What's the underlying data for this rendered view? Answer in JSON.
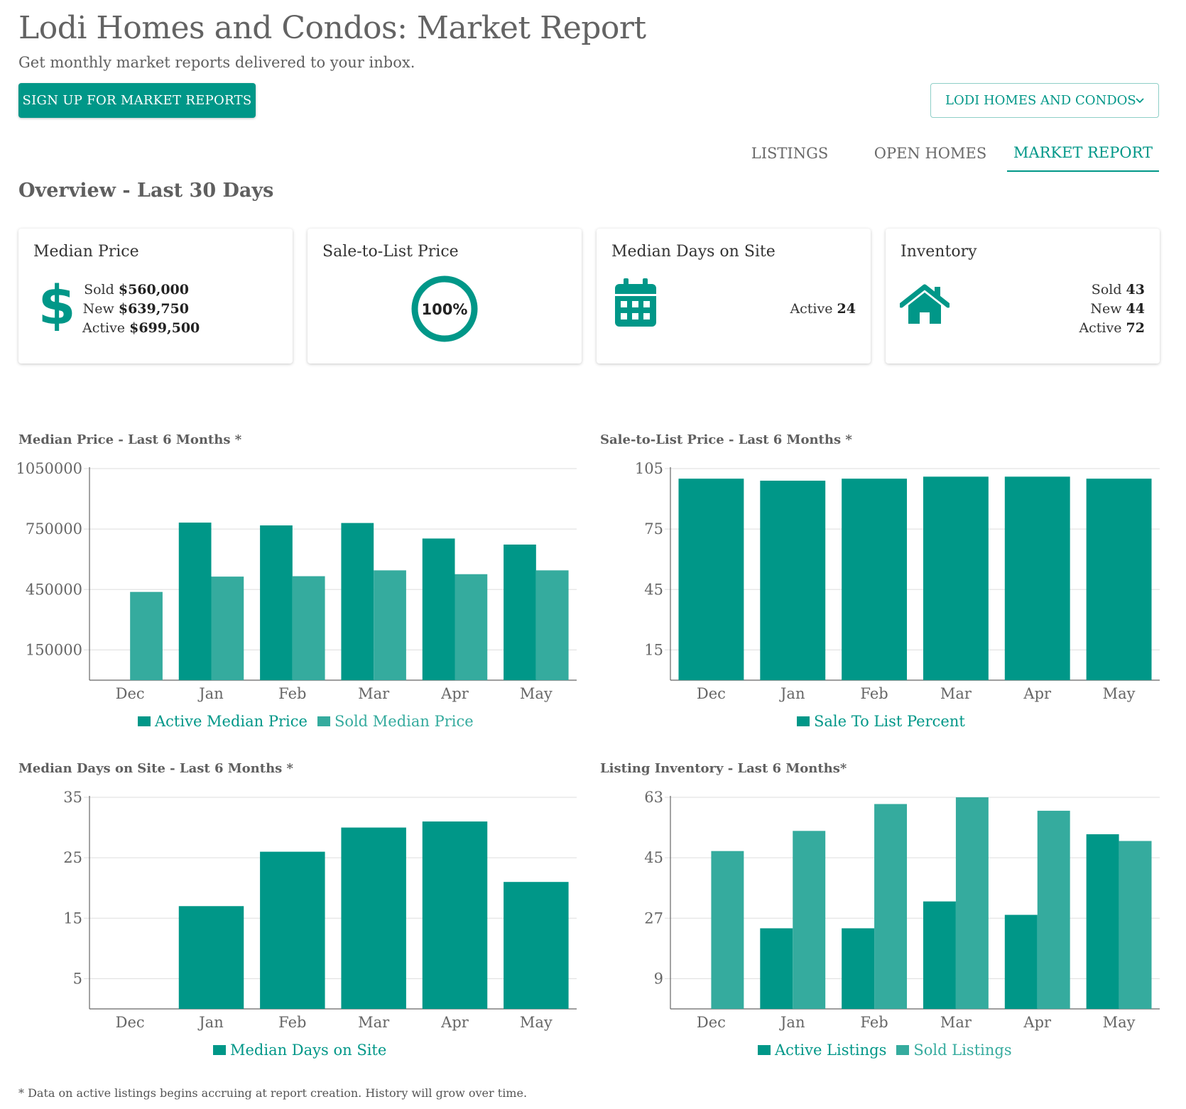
{
  "header": {
    "title": "Lodi Homes and Condos: Market Report",
    "subtitle": "Get monthly market reports delivered to your inbox.",
    "signup_label": "SIGN UP FOR MARKET REPORTS",
    "region_select": "LODI HOMES AND CONDOS"
  },
  "tabs": [
    {
      "label": "LISTINGS",
      "active": false
    },
    {
      "label": "OPEN HOMES",
      "active": false
    },
    {
      "label": "MARKET REPORT",
      "active": true
    }
  ],
  "overview": {
    "title": "Overview - Last 30 Days",
    "cards": {
      "median_price": {
        "title": "Median Price",
        "icon": "dollar-icon",
        "lines": [
          {
            "label": "Sold",
            "value": "$560,000"
          },
          {
            "label": "New",
            "value": "$639,750"
          },
          {
            "label": "Active",
            "value": "$699,500"
          }
        ]
      },
      "sale_to_list": {
        "title": "Sale-to-List Price",
        "icon": "ring-progress",
        "value": "100%"
      },
      "days_on_site": {
        "title": "Median Days on Site",
        "icon": "calendar-icon",
        "lines": [
          {
            "label": "Active",
            "value": "24"
          }
        ]
      },
      "inventory": {
        "title": "Inventory",
        "icon": "house-icon",
        "lines": [
          {
            "label": "Sold",
            "value": "43"
          },
          {
            "label": "New",
            "value": "44"
          },
          {
            "label": "Active",
            "value": "72"
          }
        ]
      }
    }
  },
  "colors": {
    "primary": "#009788",
    "secondary": "#35ab9e",
    "grid": "#dddddd",
    "axis": "#666666"
  },
  "chart_data": [
    {
      "id": "median-price",
      "type": "bar",
      "title": "Median Price - Last 6 Months *",
      "categories": [
        "Dec",
        "Jan",
        "Feb",
        "Mar",
        "Apr",
        "May"
      ],
      "series": [
        {
          "name": "Active Median Price",
          "values": [
            null,
            782000,
            768000,
            780000,
            703000,
            673000
          ]
        },
        {
          "name": "Sold Median Price",
          "values": [
            438000,
            514000,
            516000,
            545000,
            526000,
            545000
          ]
        }
      ],
      "ylim": [
        0,
        1050000
      ],
      "yticks": [
        150000,
        450000,
        750000,
        1050000
      ],
      "grid": true,
      "legend": "bottom"
    },
    {
      "id": "sale-to-list",
      "type": "bar",
      "title": "Sale-to-List Price - Last 6 Months *",
      "categories": [
        "Dec",
        "Jan",
        "Feb",
        "Mar",
        "Apr",
        "May"
      ],
      "series": [
        {
          "name": "Sale To List Percent",
          "values": [
            100,
            99,
            100,
            101,
            101,
            100
          ]
        }
      ],
      "ylim": [
        0,
        105
      ],
      "yticks": [
        15,
        45,
        75,
        105
      ],
      "grid": true,
      "legend": "bottom"
    },
    {
      "id": "days-on-site",
      "type": "bar",
      "title": "Median Days on Site - Last 6 Months *",
      "categories": [
        "Dec",
        "Jan",
        "Feb",
        "Mar",
        "Apr",
        "May"
      ],
      "series": [
        {
          "name": "Median Days on Site",
          "values": [
            null,
            17,
            26,
            30,
            31,
            21
          ]
        }
      ],
      "ylim": [
        0,
        35
      ],
      "yticks": [
        5,
        15,
        25,
        35
      ],
      "grid": true,
      "legend": "bottom"
    },
    {
      "id": "listing-inventory",
      "type": "bar",
      "title": "Listing Inventory - Last 6 Months*",
      "categories": [
        "Dec",
        "Jan",
        "Feb",
        "Mar",
        "Apr",
        "May"
      ],
      "series": [
        {
          "name": "Active Listings",
          "values": [
            null,
            24,
            24,
            32,
            28,
            52
          ]
        },
        {
          "name": "Sold Listings",
          "values": [
            47,
            53,
            61,
            63,
            59,
            50
          ]
        }
      ],
      "ylim": [
        0,
        63
      ],
      "yticks": [
        9,
        27,
        45,
        63
      ],
      "grid": true,
      "legend": "bottom"
    }
  ],
  "footnote": "* Data on active listings begins accruing at report creation. History will grow over time."
}
